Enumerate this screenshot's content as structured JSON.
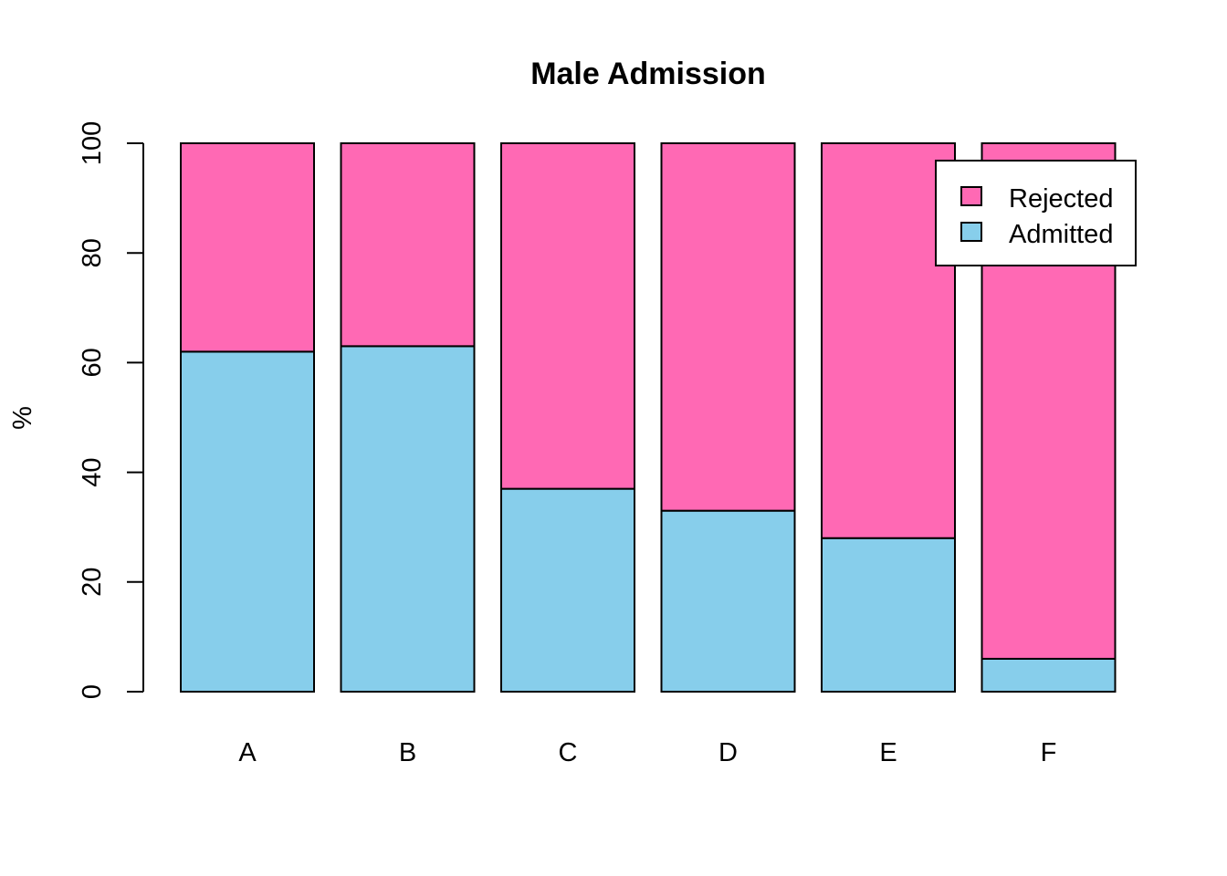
{
  "chart_data": {
    "type": "bar",
    "stacked": true,
    "title": "Male Admission",
    "xlabel": "",
    "ylabel": "%",
    "ylim": [
      0,
      100
    ],
    "yticks": [
      "0",
      "20",
      "40",
      "60",
      "80",
      "100"
    ],
    "categories": [
      "A",
      "B",
      "C",
      "D",
      "E",
      "F"
    ],
    "series": [
      {
        "name": "Admitted",
        "values": [
          62,
          63,
          37,
          33,
          28,
          6
        ],
        "color": "#87ceeb"
      },
      {
        "name": "Rejected",
        "values": [
          38,
          37,
          63,
          67,
          72,
          94
        ],
        "color": "#ff69b4"
      }
    ],
    "legend": {
      "position": "top-right",
      "entries": [
        {
          "label": "Rejected",
          "color": "#ff69b4"
        },
        {
          "label": "Admitted",
          "color": "#87ceeb"
        }
      ]
    },
    "grid": false
  }
}
